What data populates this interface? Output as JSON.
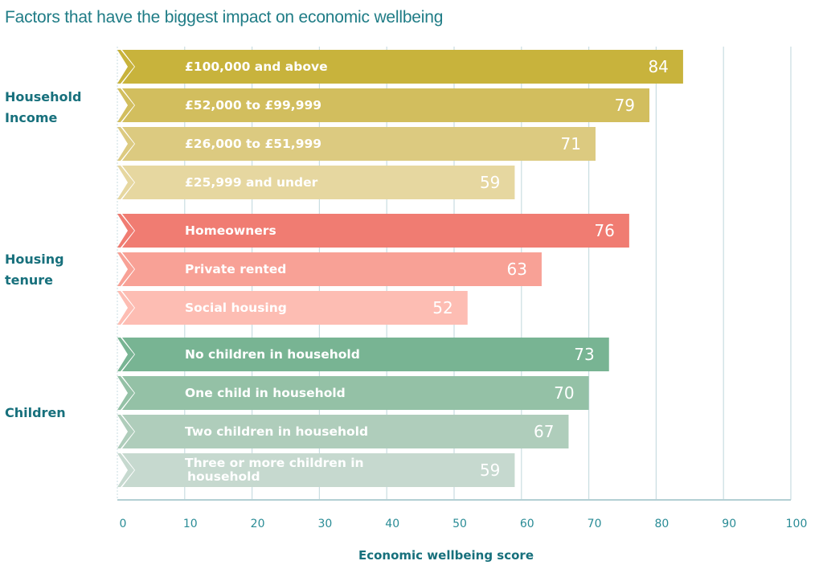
{
  "chart_data": {
    "type": "bar",
    "orientation": "horizontal",
    "title": "Factors that have the biggest impact on economic wellbeing",
    "xlabel": "Economic wellbeing score",
    "ylabel": "",
    "xlim": [
      0,
      100
    ],
    "xticks": [
      0,
      10,
      20,
      30,
      40,
      50,
      60,
      70,
      80,
      90,
      100
    ],
    "grid": true,
    "legend": "none",
    "groups": [
      {
        "name": "Household Income",
        "label_lines": [
          "Household",
          "Income"
        ],
        "bars": [
          {
            "label": "£100,000 and above",
            "value": 84,
            "color": "#c8b33c"
          },
          {
            "label": "£52,000 to £99,999",
            "value": 79,
            "color": "#d2be5e"
          },
          {
            "label": "£26,000 to £51,999",
            "value": 71,
            "color": "#dcca80"
          },
          {
            "label": "£25,999 and under",
            "value": 59,
            "color": "#e6d7a0"
          }
        ]
      },
      {
        "name": "Housing tenure",
        "label_lines": [
          "Housing",
          "tenure"
        ],
        "bars": [
          {
            "label": "Homeowners",
            "value": 76,
            "color": "#f07c72"
          },
          {
            "label": "Private rented",
            "value": 63,
            "color": "#f8a196"
          },
          {
            "label": "Social housing",
            "value": 52,
            "color": "#fdbdb3"
          }
        ]
      },
      {
        "name": "Children",
        "label_lines": [
          "Children"
        ],
        "bars": [
          {
            "label": "No children in household",
            "value": 73,
            "color": "#78b493"
          },
          {
            "label": "One child in household",
            "value": 70,
            "color": "#94c1a6"
          },
          {
            "label": "Two children in household",
            "value": 67,
            "color": "#afcdbb"
          },
          {
            "label_lines": [
              "Three or more children in",
              "household"
            ],
            "label": "Three or more children in household",
            "value": 59,
            "color": "#c6d9cf"
          }
        ]
      }
    ]
  },
  "colors": {
    "title": "#1f7c86",
    "group_label": "#17707c",
    "tick_label": "#2a8c96",
    "grid": "#c9dde1",
    "axis": "#b3cfd4"
  }
}
